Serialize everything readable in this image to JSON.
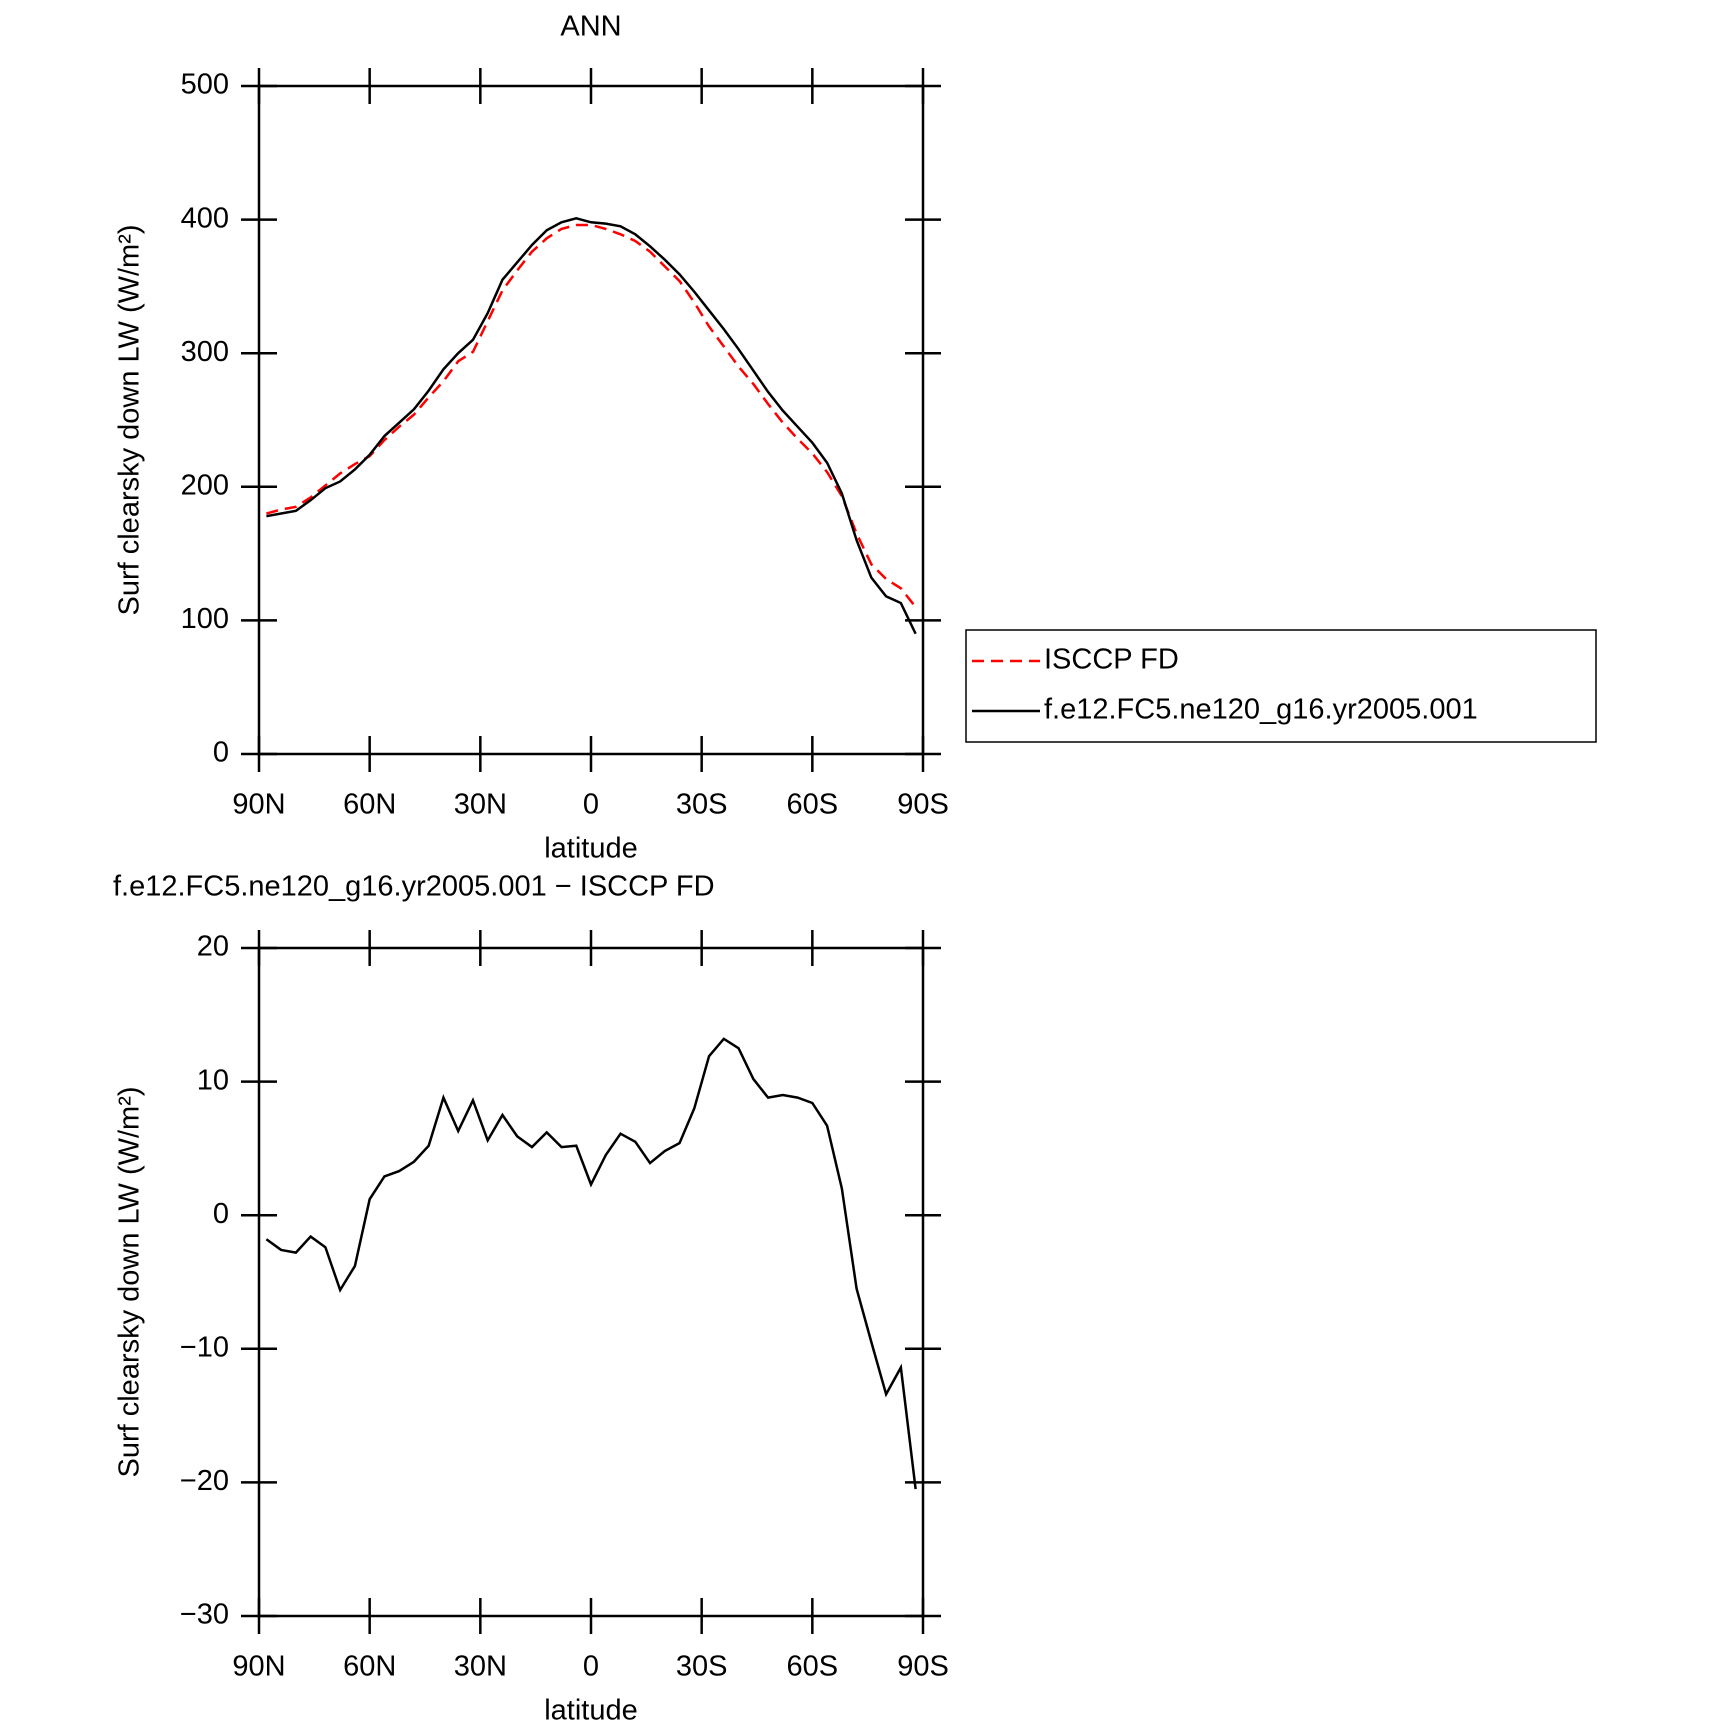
{
  "chart_data": [
    {
      "type": "line",
      "title": "ANN",
      "x_label": "latitude",
      "y_label": "Surf clearsky down LW (W/m²)",
      "x": [
        88,
        84,
        80,
        76,
        72,
        68,
        64,
        60,
        56,
        52,
        48,
        44,
        40,
        36,
        32,
        28,
        24,
        20,
        16,
        12,
        8,
        4,
        0,
        -4,
        -8,
        -12,
        -16,
        -20,
        -24,
        -28,
        -32,
        -36,
        -40,
        -44,
        -48,
        -52,
        -56,
        -60,
        -64,
        -68,
        -72,
        -76,
        -80,
        -84,
        -88
      ],
      "xlim": [
        90,
        -90
      ],
      "xticks": [
        {
          "value": 90,
          "label": "90N"
        },
        {
          "value": 60,
          "label": "60N"
        },
        {
          "value": 30,
          "label": "30N"
        },
        0,
        {
          "value": -30,
          "label": "30S"
        },
        {
          "value": -60,
          "label": "60S"
        },
        {
          "value": -90,
          "label": "90S"
        }
      ],
      "ylim": [
        0,
        500
      ],
      "yticks": [
        0,
        100,
        200,
        300,
        400,
        500
      ],
      "legend": "outside-right",
      "series": [
        {
          "name": "ISCCP FD",
          "color": "#ff0000",
          "style": "dashed",
          "values": [
            180,
            183,
            185,
            192,
            201,
            210,
            217,
            223,
            235,
            245,
            254,
            267,
            279,
            294,
            301,
            324,
            347,
            362,
            376,
            386,
            393,
            396,
            396,
            393,
            389,
            384,
            376,
            365,
            354,
            338,
            320,
            305,
            290,
            277,
            262,
            248,
            236,
            225,
            211,
            193,
            165,
            142,
            131,
            124,
            110
          ]
        },
        {
          "name": "f.e12.FC5.ne120_g16.yr2005.001",
          "color": "#000000",
          "style": "solid",
          "values": [
            178,
            180,
            182,
            190,
            199,
            204,
            213,
            224,
            238,
            248,
            258,
            272,
            288,
            300,
            310,
            330,
            355,
            368,
            381,
            392,
            398,
            401,
            398,
            397,
            395,
            389,
            380,
            370,
            359,
            346,
            332,
            318,
            303,
            287,
            271,
            257,
            245,
            233,
            218,
            195,
            160,
            132,
            118,
            113,
            90
          ]
        }
      ]
    },
    {
      "type": "line",
      "title": "f.e12.FC5.ne120_g16.yr2005.001 − ISCCP FD",
      "x_label": "latitude",
      "y_label": "Surf clearsky down LW (W/m²)",
      "x": [
        88,
        84,
        80,
        76,
        72,
        68,
        64,
        60,
        56,
        52,
        48,
        44,
        40,
        36,
        32,
        28,
        24,
        20,
        16,
        12,
        8,
        4,
        0,
        -4,
        -8,
        -12,
        -16,
        -20,
        -24,
        -28,
        -32,
        -36,
        -40,
        -44,
        -48,
        -52,
        -56,
        -60,
        -64,
        -68,
        -72,
        -76,
        -80,
        -84,
        -88
      ],
      "xlim": [
        90,
        -90
      ],
      "xticks": [
        {
          "value": 90,
          "label": "90N"
        },
        {
          "value": 60,
          "label": "60N"
        },
        {
          "value": 30,
          "label": "30N"
        },
        0,
        {
          "value": -30,
          "label": "30S"
        },
        {
          "value": -60,
          "label": "60S"
        },
        {
          "value": -90,
          "label": "90S"
        }
      ],
      "ylim": [
        -30,
        20
      ],
      "yticks": [
        {
          "value": -30,
          "label": "−30"
        },
        {
          "value": -20,
          "label": "−20"
        },
        {
          "value": -10,
          "label": "−10"
        },
        0,
        10,
        20
      ],
      "series": [
        {
          "color": "#000000",
          "style": "solid",
          "values": [
            -1.8,
            -2.6,
            -2.8,
            -1.6,
            -2.4,
            -5.6,
            -3.8,
            1.2,
            2.9,
            3.3,
            4.0,
            5.2,
            8.8,
            6.3,
            8.6,
            5.6,
            7.5,
            5.9,
            5.1,
            6.2,
            5.1,
            5.2,
            2.3,
            4.5,
            6.1,
            5.5,
            3.9,
            4.8,
            5.4,
            8.0,
            11.9,
            13.2,
            12.5,
            10.2,
            8.8,
            9.0,
            8.8,
            8.4,
            6.7,
            2.0,
            -5.5,
            -9.5,
            -13.4,
            -11.4,
            -20.5
          ]
        }
      ]
    }
  ]
}
